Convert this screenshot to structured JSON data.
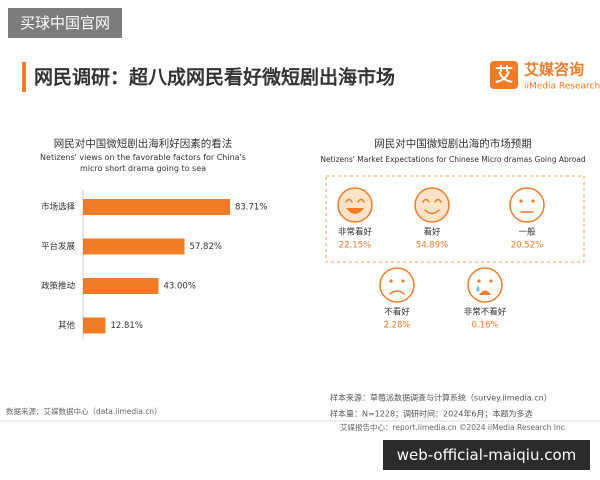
{
  "watermark": "买球中国官网",
  "header": {
    "title": "网民调研：超八成网民看好微短剧出海市场",
    "logo_mark": "艾",
    "logo_name": "艾媒咨询",
    "logo_sub": "iiMedia Research"
  },
  "chart_data": [
    {
      "type": "bar",
      "orientation": "horizontal",
      "title": "网民对中国微短剧出海利好因素的看法",
      "subtitle": "Netizens' views on the favorable factors for China's micro short drama going to sea",
      "categories": [
        "市场选择",
        "平台发展",
        "政策推动",
        "其他"
      ],
      "values": [
        83.71,
        57.82,
        43.0,
        12.81
      ],
      "value_labels": [
        "83.71%",
        "57.82%",
        "43.00%",
        "12.81%"
      ],
      "color": "#f07c28"
    },
    {
      "type": "pictogram",
      "title": "网民对中国微短剧出海的市场预期",
      "subtitle": "Netizens' Market Expectations for Chinese Micro dramas Going Abroad",
      "categories": [
        "非常看好",
        "看好",
        "一般",
        "不看好",
        "非常不看好"
      ],
      "values": [
        22.15,
        54.89,
        20.52,
        2.28,
        0.16
      ],
      "value_labels": [
        "22,15%",
        "54.89%",
        "20.52%",
        "2.28%",
        "0.16%"
      ],
      "color": "#f07c28"
    }
  ],
  "footer": {
    "source": "数据来源：艾媒数据中心（data.iimedia.cn）",
    "sample_source": "样本来源：草莓派数据调查与计算系统（survey.iimedia.cn）",
    "sample_info": "样本量：N=1228；调研时间：2024年6月；本题为多选",
    "report_center": "艾媒报告中心：report.iimedia.cn   ©2024   iiMedia Research  Inc"
  },
  "site_watermark": "web-official-maiqiu.com"
}
